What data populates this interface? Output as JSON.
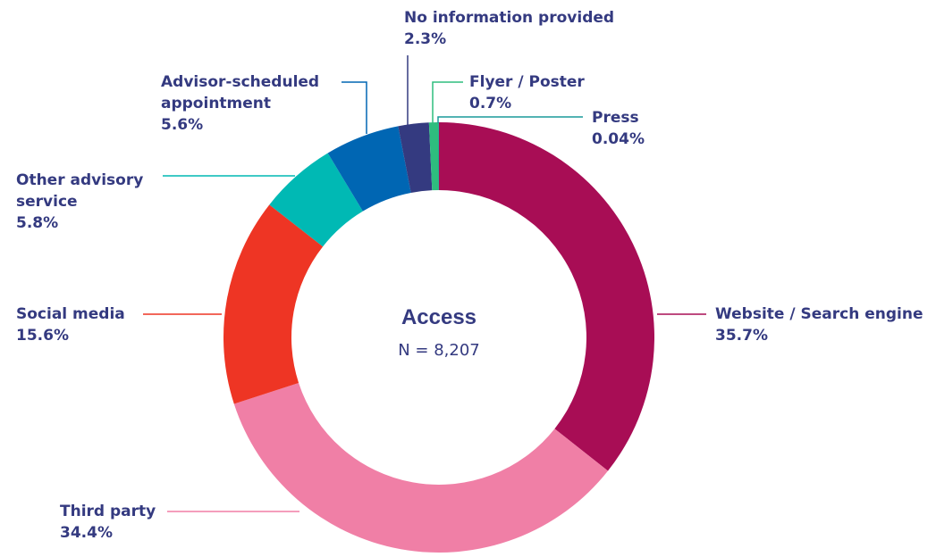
{
  "chart_data": {
    "type": "donut",
    "center_title": "Access",
    "center_subtitle": "N = 8,207",
    "categories": [
      "Website / Search engine",
      "Third party",
      "Social media",
      "Other advisory service",
      "Advisor-scheduled appointment",
      "No information provided",
      "Flyer / Poster",
      "Press"
    ],
    "values": [
      35.7,
      34.4,
      15.6,
      5.8,
      5.6,
      2.3,
      0.7,
      0.04
    ],
    "value_labels": [
      "35.7%",
      "34.4%",
      "15.6%",
      "5.8%",
      "5.6%",
      "2.3%",
      "0.7%",
      "0.04%"
    ],
    "colors": [
      "#a80d55",
      "#f07fa6",
      "#ee3524",
      "#00b9b4",
      "#0066b3",
      "#343a80",
      "#2ebd7e",
      "#1a9a9a"
    ]
  }
}
